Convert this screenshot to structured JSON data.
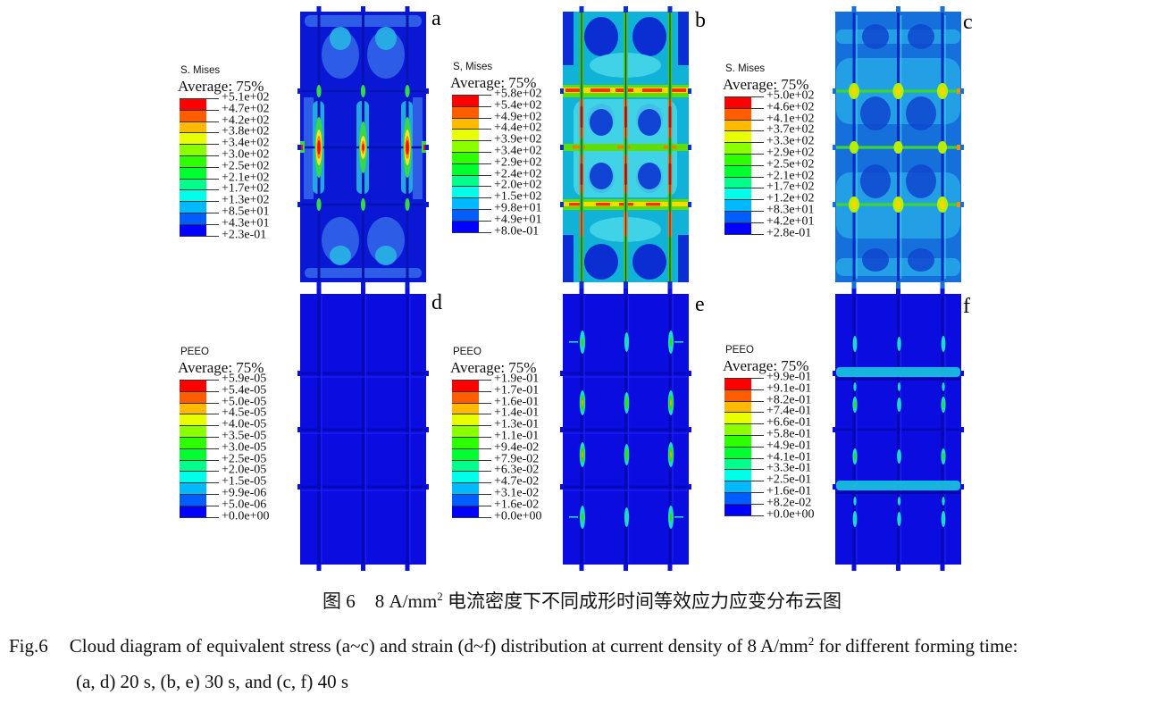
{
  "figure": {
    "spectrum": [
      "#ff0000",
      "#ff5d00",
      "#ffb900",
      "#e8ff00",
      "#8bff00",
      "#2eff00",
      "#00ff2e",
      "#00ff8b",
      "#00ffe8",
      "#00b9ff",
      "#005dff",
      "#0000ff"
    ],
    "panels": [
      {
        "letter": "a",
        "legend_title": "S. Mises",
        "legend_subtitle": "Average: 75%",
        "ticks": [
          "+5.1e+02",
          "+4.7e+02",
          "+4.2e+02",
          "+3.8e+02",
          "+3.4e+02",
          "+3.0e+02",
          "+2.5e+02",
          "+2.1e+02",
          "+1.7e+02",
          "+1.3e+02",
          "+8.5e+01",
          "+4.3e+01",
          "+2.3e-01"
        ]
      },
      {
        "letter": "b",
        "legend_title": "S, Mises",
        "legend_subtitle": "Average: 75%",
        "ticks": [
          "+5.8e+02",
          "+5.4e+02",
          "+4.9e+02",
          "+4.4e+02",
          "+3.9e+02",
          "+3.4e+02",
          "+2.9e+02",
          "+2.4e+02",
          "+2.0e+02",
          "+1.5e+02",
          "+9.8e+01",
          "+4.9e+01",
          "+8.0e-01"
        ]
      },
      {
        "letter": "c",
        "legend_title": "S. Mises",
        "legend_subtitle": "Average: 75%",
        "ticks": [
          "+5.0e+02",
          "+4.6e+02",
          "+4.1e+02",
          "+3.7e+02",
          "+3.3e+02",
          "+2.9e+02",
          "+2.5e+02",
          "+2.1e+02",
          "+1.7e+02",
          "+1.2e+02",
          "+8.3e+01",
          "+4.2e+01",
          "+2.8e-01"
        ]
      },
      {
        "letter": "d",
        "legend_title": "PEEO",
        "legend_subtitle": "Average: 75%",
        "ticks": [
          "+5.9e-05",
          "+5.4e-05",
          "+5.0e-05",
          "+4.5e-05",
          "+4.0e-05",
          "+3.5e-05",
          "+3.0e-05",
          "+2.5e-05",
          "+2.0e-05",
          "+1.5e-05",
          "+9.9e-06",
          "+5.0e-06",
          "+0.0e+00"
        ]
      },
      {
        "letter": "e",
        "legend_title": "PEEO",
        "legend_subtitle": "Average: 75%",
        "ticks": [
          "+1.9e-01",
          "+1.7e-01",
          "+1.6e-01",
          "+1.4e-01",
          "+1.3e-01",
          "+1.1e-01",
          "+9.4e-02",
          "+7.9e-02",
          "+6.3e-02",
          "+4.7e-02",
          "+3.1e-02",
          "+1.6e-02",
          "+0.0e+00"
        ]
      },
      {
        "letter": "f",
        "legend_title": "PEEO",
        "legend_subtitle": "Average: 75%",
        "ticks": [
          "+9.9e-01",
          "+9.1e-01",
          "+8.2e-01",
          "+7.4e-01",
          "+6.6e-01",
          "+5.8e-01",
          "+4.9e-01",
          "+4.1e-01",
          "+3.3e-01",
          "+2.5e-01",
          "+1.6e-01",
          "+8.2e-02",
          "+0.0e+00"
        ]
      }
    ]
  },
  "caption": {
    "cn_label": "图 6",
    "cn_pre": "8 A/mm",
    "sup": "2",
    "cn_post": " 电流密度下不同成形时间等效应力应变分布云图",
    "en_label": "Fig.6",
    "en_pre": "Cloud diagram of equivalent stress (a~c) and strain (d~f) distribution at current density of 8 A/mm",
    "en_post": " for different forming time:",
    "en_line2": "(a, d) 20 s, (b, e) 30 s, and (c, f) 40 s"
  }
}
